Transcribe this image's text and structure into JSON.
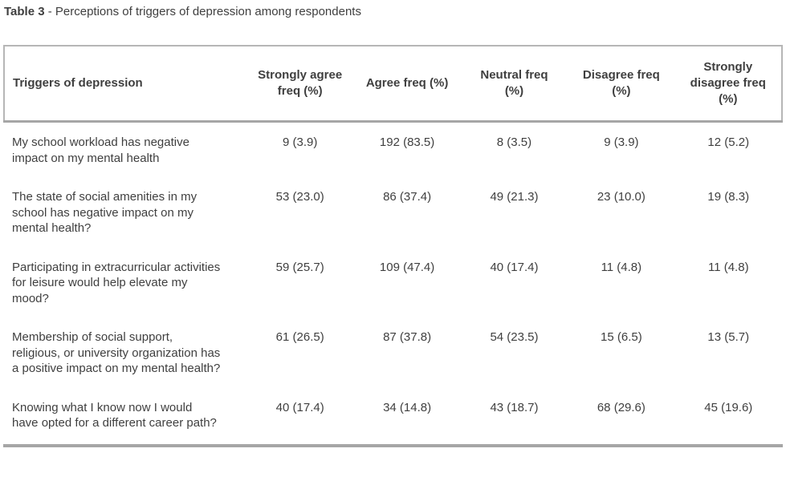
{
  "caption": {
    "label": "Table 3",
    "text": " - Perceptions of triggers of depression among respondents"
  },
  "table": {
    "columns": [
      "Triggers of depression",
      "Strongly agree freq (%)",
      "Agree freq (%)",
      "Neutral freq (%)",
      "Disagree freq (%)",
      "Strongly disagree freq (%)"
    ],
    "rows": [
      [
        "My school workload has negative impact on my mental health",
        "9 (3.9)",
        "192 (83.5)",
        "8 (3.5)",
        "9 (3.9)",
        "12 (5.2)"
      ],
      [
        "The state of social amenities in my school has negative impact on my mental health?",
        "53 (23.0)",
        "86 (37.4)",
        "49 (21.3)",
        "23 (10.0)",
        "19 (8.3)"
      ],
      [
        "Participating in extracurricular activities for leisure would help elevate my mood?",
        "59 (25.7)",
        "109 (47.4)",
        "40 (17.4)",
        "11 (4.8)",
        "11 (4.8)"
      ],
      [
        "Membership of social support, religious, or university organization has a positive impact on my mental health?",
        "61 (26.5)",
        "87 (37.8)",
        "54 (23.5)",
        "15 (6.5)",
        "13 (5.7)"
      ],
      [
        "Knowing what I know now I would have opted for a different career path?",
        "40 (17.4)",
        "34 (14.8)",
        "43 (18.7)",
        "68 (29.6)",
        "45 (19.6)"
      ]
    ]
  },
  "colors": {
    "text": "#3f3f3f",
    "header_box_border": "#b6b6b6",
    "horizontal_rule": "#a6a6a6",
    "background": "#ffffff"
  }
}
